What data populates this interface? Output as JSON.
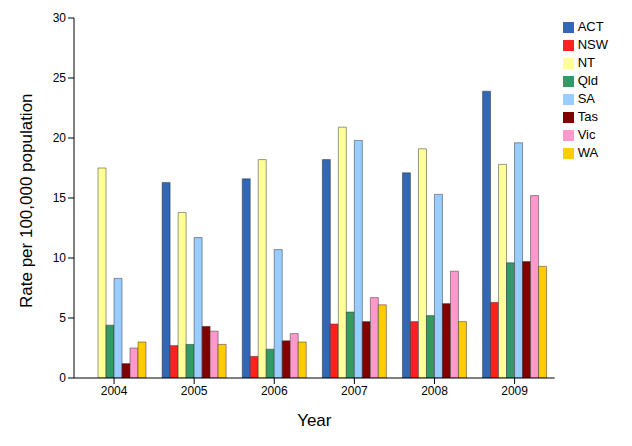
{
  "chart_data": {
    "type": "bar",
    "x_label": "Year",
    "y_label": "Rate per 100,000 population",
    "categories": [
      "2004",
      "2005",
      "2006",
      "2007",
      "2008",
      "2009"
    ],
    "series": [
      {
        "name": "ACT",
        "color": "#3366b3",
        "values": [
          null,
          16.3,
          16.6,
          18.2,
          17.1,
          23.9
        ]
      },
      {
        "name": "NSW",
        "color": "#ff2020",
        "values": [
          null,
          2.7,
          1.8,
          4.5,
          4.7,
          6.3
        ]
      },
      {
        "name": "NT",
        "color": "#ffff99",
        "values": [
          17.5,
          13.8,
          18.2,
          20.9,
          19.1,
          17.8
        ]
      },
      {
        "name": "Qld",
        "color": "#339966",
        "values": [
          4.4,
          2.8,
          2.4,
          5.5,
          5.2,
          9.6
        ]
      },
      {
        "name": "SA",
        "color": "#99ccff",
        "values": [
          8.3,
          11.7,
          10.7,
          19.8,
          15.3,
          19.6
        ]
      },
      {
        "name": "Tas",
        "color": "#800000",
        "values": [
          1.2,
          4.3,
          3.1,
          4.7,
          6.2,
          9.7
        ]
      },
      {
        "name": "Vic",
        "color": "#ff99cc",
        "values": [
          2.5,
          3.9,
          3.7,
          6.7,
          8.9,
          15.2
        ]
      },
      {
        "name": "WA",
        "color": "#ffcc00",
        "values": [
          3.0,
          2.8,
          3.0,
          6.1,
          4.7,
          9.3
        ]
      }
    ],
    "ylim": [
      0,
      30
    ],
    "yticks": [
      0,
      5,
      10,
      15,
      20,
      25,
      30
    ],
    "grid": false,
    "legend": "upper right"
  }
}
